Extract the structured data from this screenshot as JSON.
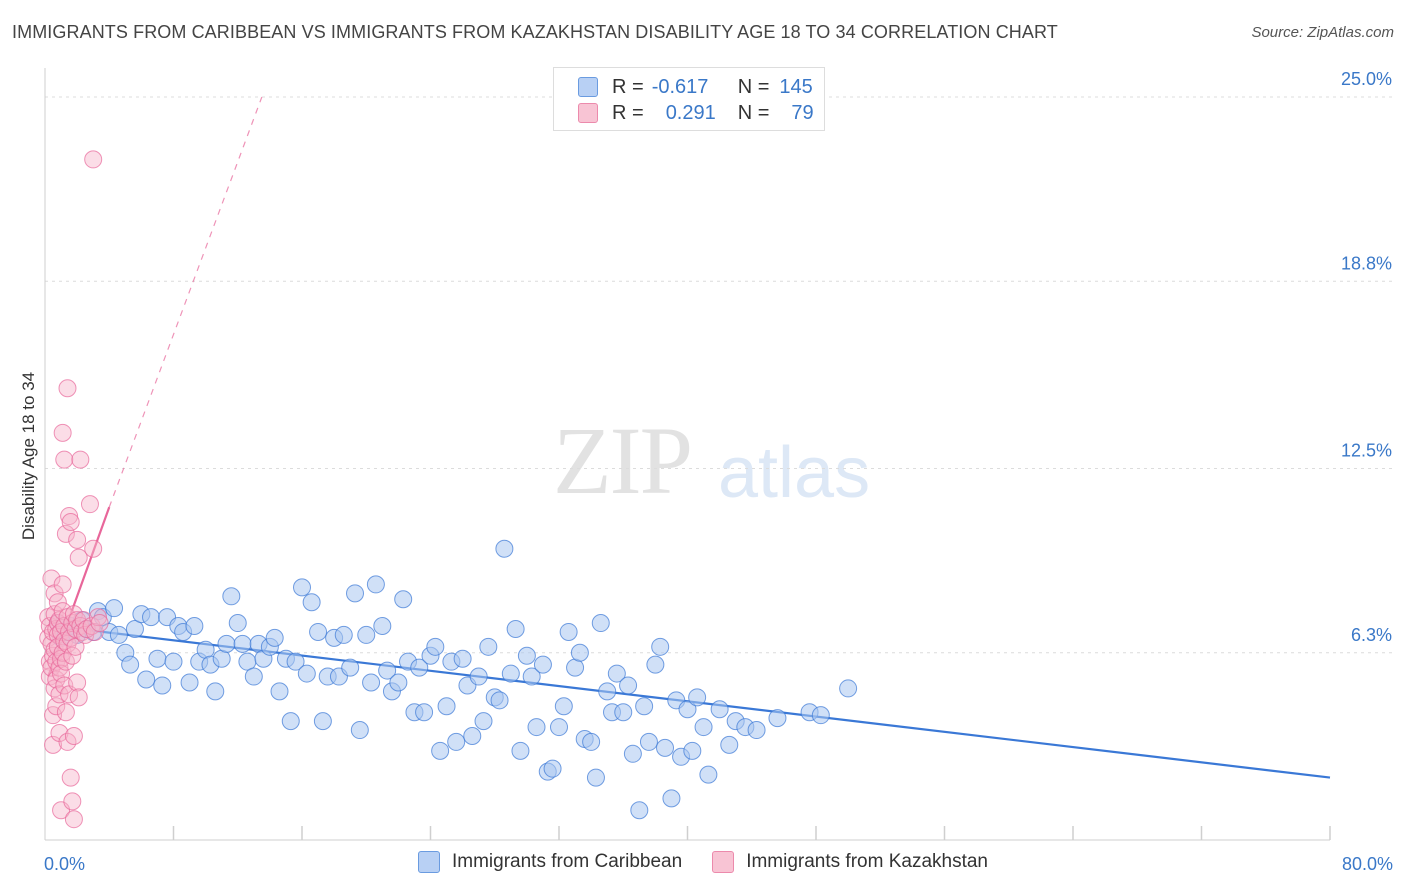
{
  "title": "IMMIGRANTS FROM CARIBBEAN VS IMMIGRANTS FROM KAZAKHSTAN DISABILITY AGE 18 TO 34 CORRELATION CHART",
  "source": "Source: ZipAtlas.com",
  "watermark": {
    "zip": "ZIP",
    "atlas": "atlas"
  },
  "legend": {
    "r_label": "R =",
    "n_label": "N =",
    "rows": [
      {
        "r": "-0.617",
        "n": "145"
      },
      {
        "r": "0.291",
        "n": "79"
      }
    ]
  },
  "chart_data": {
    "type": "scatter",
    "ylabel": "Disability Age 18 to 34",
    "xlim": [
      0,
      80
    ],
    "ylim": [
      0,
      25
    ],
    "y_ticks": [
      {
        "value": 6.3,
        "label": "6.3%"
      },
      {
        "value": 12.5,
        "label": "12.5%"
      },
      {
        "value": 18.8,
        "label": "18.8%"
      },
      {
        "value": 25.0,
        "label": "25.0%"
      }
    ],
    "x_tick_labels": {
      "min": "0.0%",
      "max": "80.0%"
    },
    "colors": {
      "blue": "#3a78d6",
      "blue_fill": "#a9c6f0",
      "pink": "#e8669a",
      "pink_fill": "#f6b4ca"
    },
    "series": [
      {
        "name": "Immigrants from Caribbean",
        "color": "#3a78d6",
        "trend": {
          "x0": 0.5,
          "y0": 7.2,
          "x1": 80,
          "y1": 2.1
        },
        "points": [
          [
            0.8,
            7.3
          ],
          [
            1.0,
            6.8
          ],
          [
            1.3,
            7.0
          ],
          [
            1.6,
            7.2
          ],
          [
            2.0,
            6.9
          ],
          [
            2.3,
            7.4
          ],
          [
            2.6,
            7.1
          ],
          [
            3.0,
            7.0
          ],
          [
            3.3,
            7.7
          ],
          [
            3.6,
            7.5
          ],
          [
            4.0,
            7.0
          ],
          [
            4.3,
            7.8
          ],
          [
            4.6,
            6.9
          ],
          [
            5.0,
            6.3
          ],
          [
            5.3,
            5.9
          ],
          [
            5.6,
            7.1
          ],
          [
            6.0,
            7.6
          ],
          [
            6.3,
            5.4
          ],
          [
            6.6,
            7.5
          ],
          [
            7.0,
            6.1
          ],
          [
            7.3,
            5.2
          ],
          [
            7.6,
            7.5
          ],
          [
            8.0,
            6.0
          ],
          [
            8.3,
            7.2
          ],
          [
            8.6,
            7.0
          ],
          [
            9.0,
            5.3
          ],
          [
            9.3,
            7.2
          ],
          [
            9.6,
            6.0
          ],
          [
            10.0,
            6.4
          ],
          [
            10.3,
            5.9
          ],
          [
            10.6,
            5.0
          ],
          [
            11.0,
            6.1
          ],
          [
            11.3,
            6.6
          ],
          [
            11.6,
            8.2
          ],
          [
            12.0,
            7.3
          ],
          [
            12.3,
            6.6
          ],
          [
            12.6,
            6.0
          ],
          [
            13.0,
            5.5
          ],
          [
            13.3,
            6.6
          ],
          [
            13.6,
            6.1
          ],
          [
            14.0,
            6.5
          ],
          [
            14.3,
            6.8
          ],
          [
            14.6,
            5.0
          ],
          [
            15.0,
            6.1
          ],
          [
            15.3,
            4.0
          ],
          [
            15.6,
            6.0
          ],
          [
            16.0,
            8.5
          ],
          [
            16.3,
            5.6
          ],
          [
            16.6,
            8.0
          ],
          [
            17.0,
            7.0
          ],
          [
            17.3,
            4.0
          ],
          [
            17.6,
            5.5
          ],
          [
            18.0,
            6.8
          ],
          [
            18.3,
            5.5
          ],
          [
            18.6,
            6.9
          ],
          [
            19.0,
            5.8
          ],
          [
            19.3,
            8.3
          ],
          [
            19.6,
            3.7
          ],
          [
            20.0,
            6.9
          ],
          [
            20.3,
            5.3
          ],
          [
            20.6,
            8.6
          ],
          [
            21.0,
            7.2
          ],
          [
            21.3,
            5.7
          ],
          [
            21.6,
            5.0
          ],
          [
            22.0,
            5.3
          ],
          [
            22.3,
            8.1
          ],
          [
            22.6,
            6.0
          ],
          [
            23.0,
            4.3
          ],
          [
            23.3,
            5.8
          ],
          [
            23.6,
            4.3
          ],
          [
            24.0,
            6.2
          ],
          [
            24.3,
            6.5
          ],
          [
            24.6,
            3.0
          ],
          [
            25.0,
            4.5
          ],
          [
            25.3,
            6.0
          ],
          [
            25.6,
            3.3
          ],
          [
            26.0,
            6.1
          ],
          [
            26.3,
            5.2
          ],
          [
            26.6,
            3.5
          ],
          [
            27.0,
            5.5
          ],
          [
            27.3,
            4.0
          ],
          [
            27.6,
            6.5
          ],
          [
            28.0,
            4.8
          ],
          [
            28.3,
            4.7
          ],
          [
            28.6,
            9.8
          ],
          [
            29.0,
            5.6
          ],
          [
            29.3,
            7.1
          ],
          [
            29.6,
            3.0
          ],
          [
            30.0,
            6.2
          ],
          [
            30.3,
            5.5
          ],
          [
            30.6,
            3.8
          ],
          [
            31.0,
            5.9
          ],
          [
            31.3,
            2.3
          ],
          [
            31.6,
            2.4
          ],
          [
            32.0,
            3.8
          ],
          [
            32.3,
            4.5
          ],
          [
            32.6,
            7.0
          ],
          [
            33.0,
            5.8
          ],
          [
            33.3,
            6.3
          ],
          [
            33.6,
            3.4
          ],
          [
            34.0,
            3.3
          ],
          [
            34.3,
            2.1
          ],
          [
            34.6,
            7.3
          ],
          [
            35.0,
            5.0
          ],
          [
            35.3,
            4.3
          ],
          [
            35.6,
            5.6
          ],
          [
            36.0,
            4.3
          ],
          [
            36.3,
            5.2
          ],
          [
            36.6,
            2.9
          ],
          [
            37.0,
            1.0
          ],
          [
            37.3,
            4.5
          ],
          [
            37.6,
            3.3
          ],
          [
            38.0,
            5.9
          ],
          [
            38.3,
            6.5
          ],
          [
            38.6,
            3.1
          ],
          [
            39.0,
            1.4
          ],
          [
            39.3,
            4.7
          ],
          [
            39.6,
            2.8
          ],
          [
            40.0,
            4.4
          ],
          [
            40.3,
            3.0
          ],
          [
            40.6,
            4.8
          ],
          [
            41.0,
            3.8
          ],
          [
            41.3,
            2.2
          ],
          [
            42.0,
            4.4
          ],
          [
            42.6,
            3.2
          ],
          [
            43.0,
            4.0
          ],
          [
            43.6,
            3.8
          ],
          [
            44.3,
            3.7
          ],
          [
            45.6,
            4.1
          ],
          [
            47.6,
            4.3
          ],
          [
            48.3,
            4.2
          ],
          [
            50.0,
            5.1
          ]
        ]
      },
      {
        "name": "Immigrants from Kazakhstan",
        "color": "#e8669a",
        "trend": {
          "x0": 0.2,
          "y0": 5.5,
          "x1": 4.0,
          "y1": 11.2,
          "ext_x1": 13.5,
          "ext_y1": 25.0
        },
        "points": [
          [
            0.2,
            7.5
          ],
          [
            0.2,
            6.8
          ],
          [
            0.3,
            6.0
          ],
          [
            0.3,
            5.5
          ],
          [
            0.3,
            7.2
          ],
          [
            0.4,
            8.8
          ],
          [
            0.4,
            6.6
          ],
          [
            0.4,
            5.8
          ],
          [
            0.5,
            7.0
          ],
          [
            0.5,
            6.2
          ],
          [
            0.5,
            4.2
          ],
          [
            0.5,
            3.2
          ],
          [
            0.6,
            8.3
          ],
          [
            0.6,
            7.6
          ],
          [
            0.6,
            6.4
          ],
          [
            0.6,
            5.1
          ],
          [
            0.7,
            7.1
          ],
          [
            0.7,
            6.0
          ],
          [
            0.7,
            5.4
          ],
          [
            0.7,
            4.5
          ],
          [
            0.8,
            8.0
          ],
          [
            0.8,
            7.3
          ],
          [
            0.8,
            6.9
          ],
          [
            0.8,
            6.5
          ],
          [
            0.9,
            7.4
          ],
          [
            0.9,
            5.8
          ],
          [
            0.9,
            4.9
          ],
          [
            0.9,
            3.6
          ],
          [
            1.0,
            7.0
          ],
          [
            1.0,
            6.1
          ],
          [
            1.0,
            5.6
          ],
          [
            1.0,
            1.0
          ],
          [
            1.1,
            13.7
          ],
          [
            1.1,
            8.6
          ],
          [
            1.1,
            7.7
          ],
          [
            1.1,
            6.3
          ],
          [
            1.2,
            12.8
          ],
          [
            1.2,
            7.2
          ],
          [
            1.2,
            6.7
          ],
          [
            1.2,
            5.2
          ],
          [
            1.3,
            10.3
          ],
          [
            1.3,
            6.0
          ],
          [
            1.3,
            4.3
          ],
          [
            1.4,
            15.2
          ],
          [
            1.4,
            7.5
          ],
          [
            1.4,
            6.6
          ],
          [
            1.4,
            3.3
          ],
          [
            1.5,
            10.9
          ],
          [
            1.5,
            7.0
          ],
          [
            1.5,
            4.9
          ],
          [
            1.6,
            10.7
          ],
          [
            1.6,
            6.8
          ],
          [
            1.6,
            2.1
          ],
          [
            1.7,
            7.3
          ],
          [
            1.7,
            6.2
          ],
          [
            1.7,
            1.3
          ],
          [
            1.8,
            7.6
          ],
          [
            1.8,
            3.5
          ],
          [
            1.8,
            0.7
          ],
          [
            1.9,
            7.1
          ],
          [
            1.9,
            6.5
          ],
          [
            2.0,
            10.1
          ],
          [
            2.0,
            7.4
          ],
          [
            2.0,
            5.3
          ],
          [
            2.1,
            9.5
          ],
          [
            2.1,
            4.8
          ],
          [
            2.2,
            12.8
          ],
          [
            2.2,
            7.2
          ],
          [
            2.3,
            7.0
          ],
          [
            2.4,
            7.4
          ],
          [
            2.5,
            6.9
          ],
          [
            2.6,
            7.1
          ],
          [
            2.8,
            11.3
          ],
          [
            2.9,
            7.2
          ],
          [
            3.0,
            9.8
          ],
          [
            3.1,
            7.0
          ],
          [
            3.3,
            7.5
          ],
          [
            3.4,
            7.3
          ],
          [
            3.0,
            22.9
          ]
        ]
      }
    ]
  },
  "bottom_legend": [
    "Immigrants from Caribbean",
    "Immigrants from Kazakhstan"
  ]
}
